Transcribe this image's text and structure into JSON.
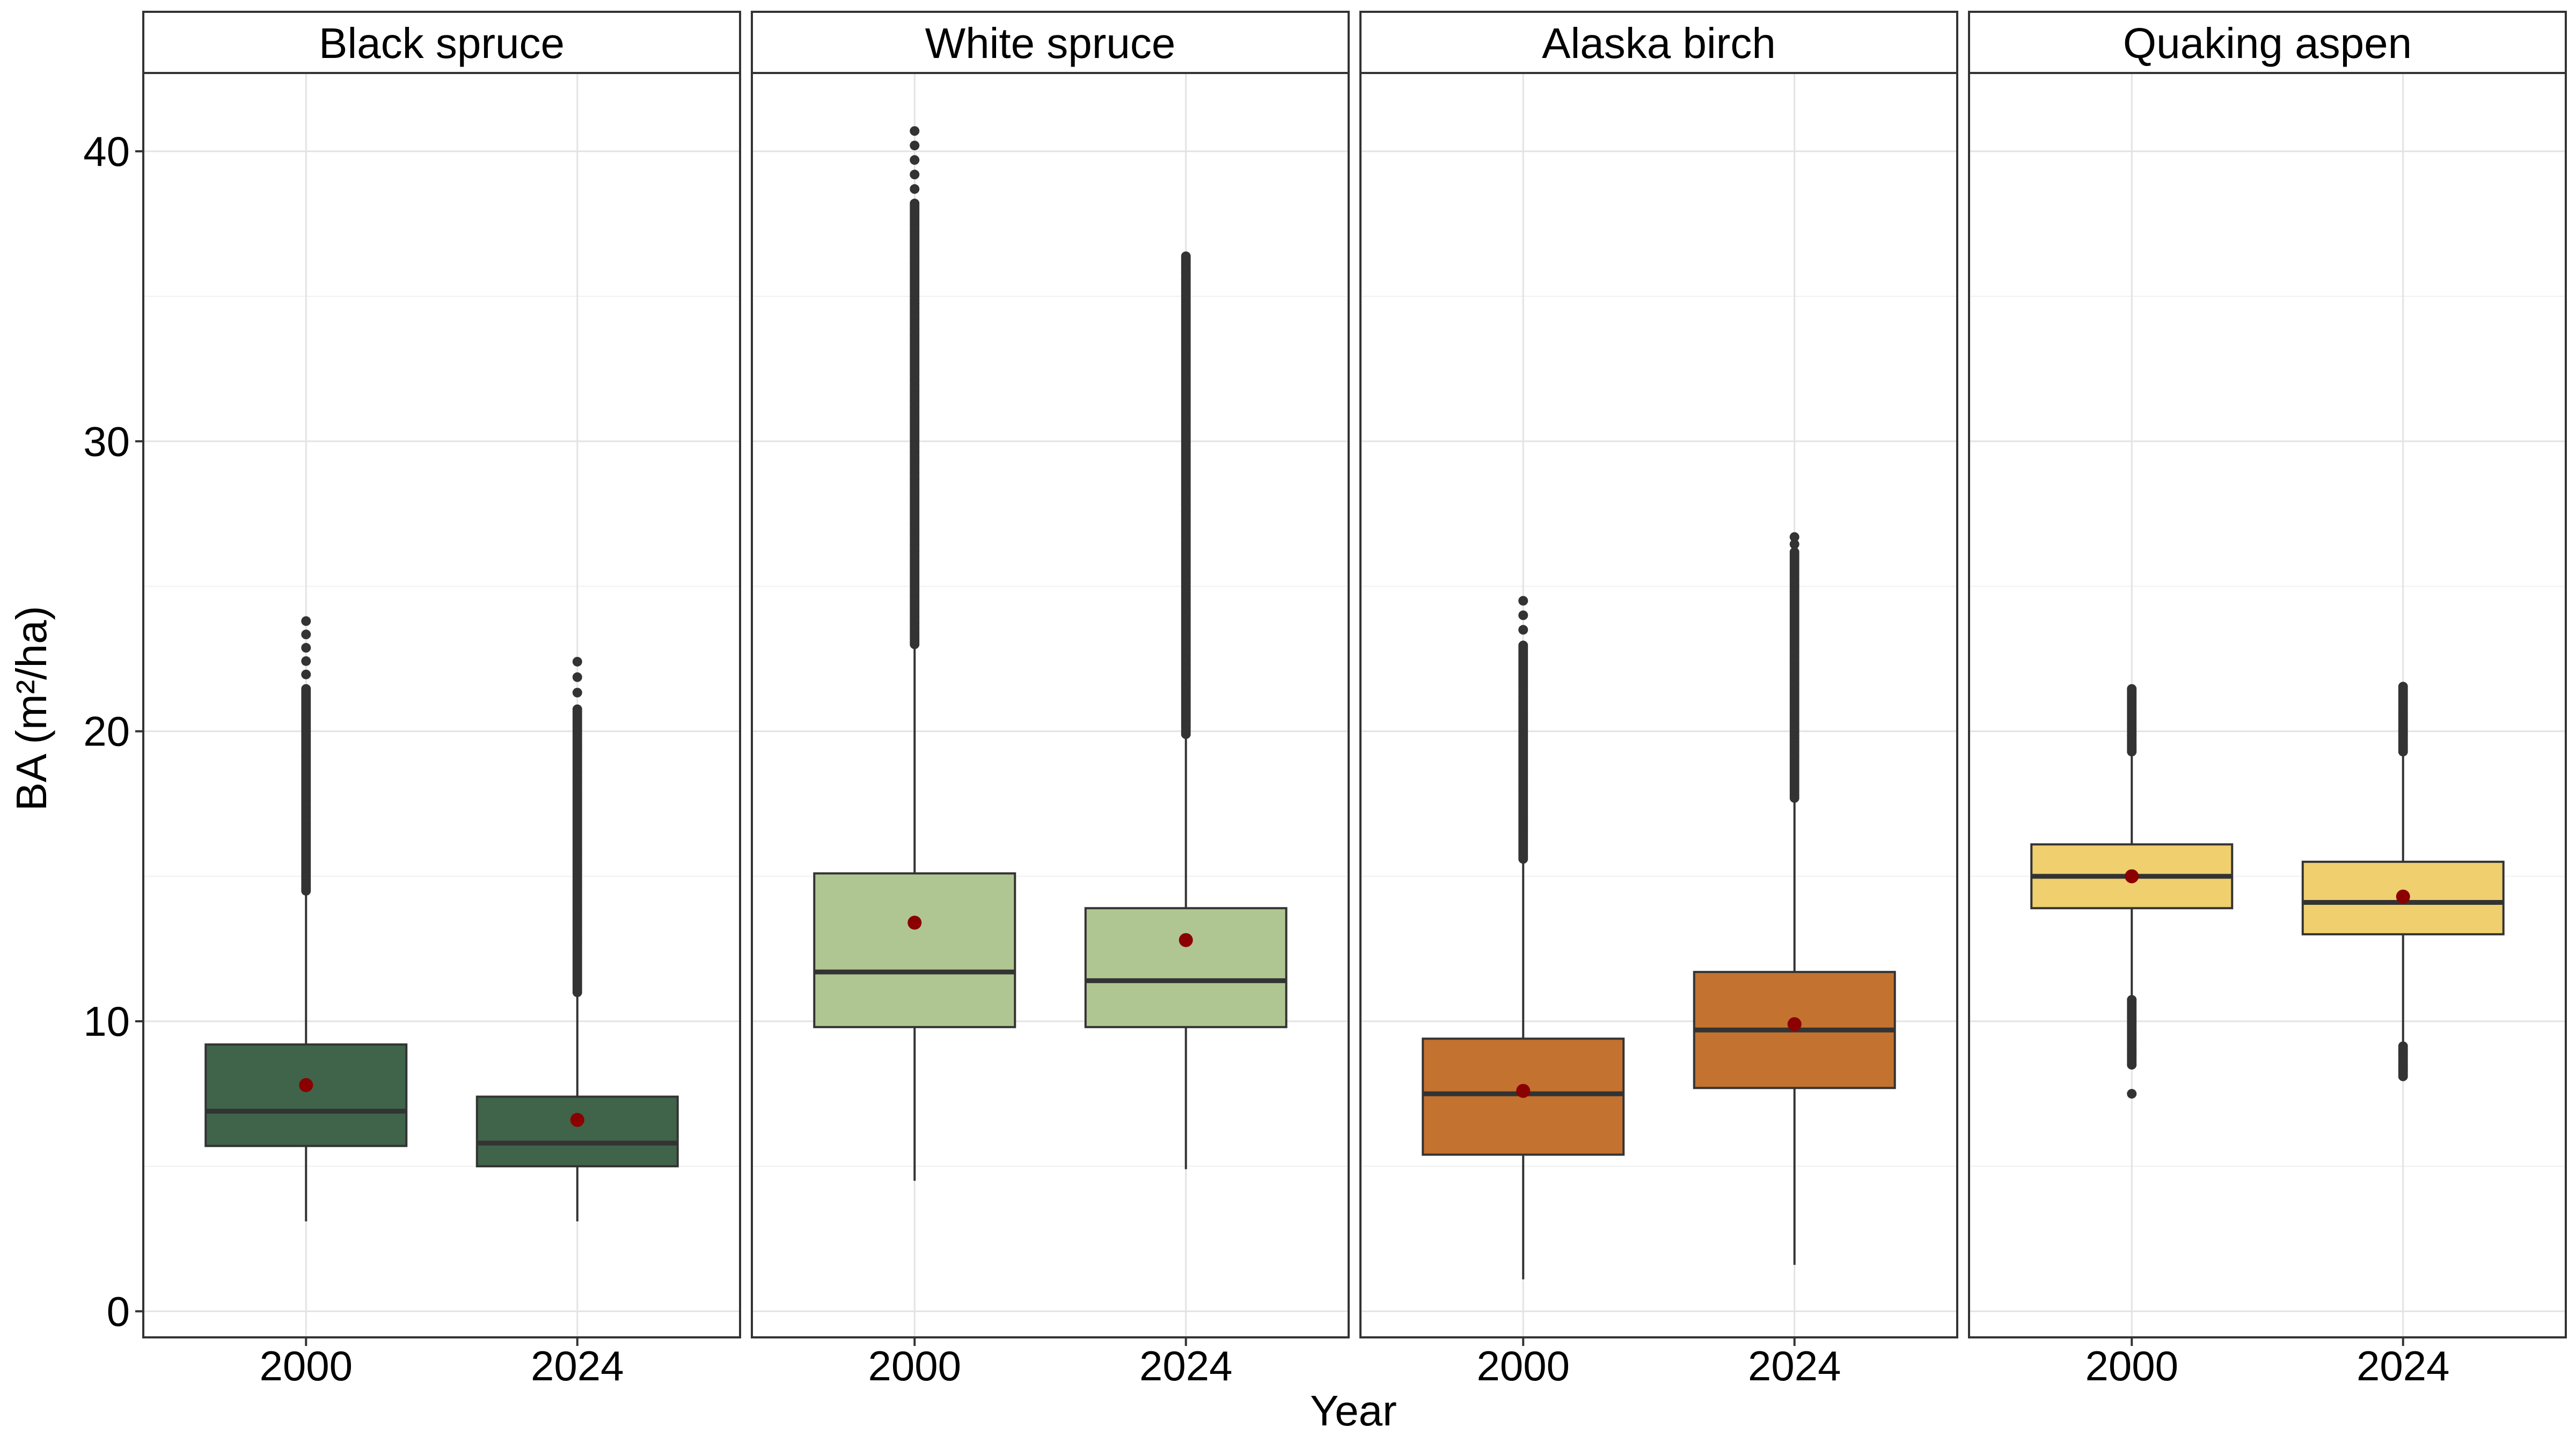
{
  "chart_data": {
    "type": "box",
    "facets": [
      "Black spruce",
      "White spruce",
      "Alaska birch",
      "Quaking aspen"
    ],
    "categories": [
      "2000",
      "2024"
    ],
    "xlabel": "Year",
    "ylabel": "BA (m²/ha)",
    "ylim": [
      -0.9,
      42.7
    ],
    "yticks": [
      0,
      10,
      20,
      30,
      40
    ],
    "grid": true,
    "mean_color": "#8B0000",
    "outlier_color": "#333333",
    "series": [
      {
        "name": "Black spruce",
        "fill": "#3F6449",
        "boxes": [
          {
            "year": "2000",
            "whisker_low": 3.1,
            "q1": 5.7,
            "median": 6.9,
            "q3": 9.2,
            "whisker_high": 14.4,
            "mean": 7.8,
            "outliers": {
              "from": 14.5,
              "to": 23.8,
              "dense_to": 21.5
            }
          },
          {
            "year": "2024",
            "whisker_low": 3.1,
            "q1": 5.0,
            "median": 5.8,
            "q3": 7.4,
            "whisker_high": 10.9,
            "mean": 6.6,
            "outliers": {
              "from": 11.0,
              "to": 22.4,
              "dense_to": 20.8
            }
          }
        ]
      },
      {
        "name": "White spruce",
        "fill": "#B0C692",
        "boxes": [
          {
            "year": "2000",
            "whisker_low": 4.5,
            "q1": 9.8,
            "median": 11.7,
            "q3": 15.1,
            "whisker_high": 22.9,
            "mean": 13.4,
            "outliers": {
              "from": 23.0,
              "to": 40.7,
              "dense_to": 38.2
            }
          },
          {
            "year": "2024",
            "whisker_low": 4.9,
            "q1": 9.8,
            "median": 11.4,
            "q3": 13.9,
            "whisker_high": 19.8,
            "mean": 12.8,
            "outliers": {
              "from": 19.9,
              "to": 36.4,
              "dense_to": 36.4
            }
          }
        ]
      },
      {
        "name": "Alaska birch",
        "fill": "#C3722F",
        "boxes": [
          {
            "year": "2000",
            "whisker_low": 1.1,
            "q1": 5.4,
            "median": 7.5,
            "q3": 9.4,
            "whisker_high": 15.5,
            "mean": 7.6,
            "outliers": {
              "from": 15.6,
              "to": 24.5,
              "dense_to": 23.0
            }
          },
          {
            "year": "2024",
            "whisker_low": 1.6,
            "q1": 7.7,
            "median": 9.7,
            "q3": 11.7,
            "whisker_high": 17.6,
            "mean": 9.9,
            "outliers": {
              "from": 17.7,
              "to": 26.7,
              "dense_to": 26.2
            }
          }
        ]
      },
      {
        "name": "Quaking aspen",
        "fill": "#EFCF6E",
        "boxes": [
          {
            "year": "2000",
            "whisker_low": 10.9,
            "q1": 13.9,
            "median": 15.0,
            "q3": 16.1,
            "whisker_high": 19.2,
            "mean": 15.0,
            "outliers_high": {
              "from": 19.3,
              "to": 21.5,
              "dense_to": 21.5
            },
            "outliers_low": {
              "from": 8.5,
              "to": 10.8,
              "extra": 7.5
            }
          },
          {
            "year": "2024",
            "whisker_low": 9.3,
            "q1": 13.0,
            "median": 14.1,
            "q3": 15.5,
            "whisker_high": 19.2,
            "mean": 14.3,
            "outliers_high": {
              "from": 19.3,
              "to": 21.6,
              "dense_to": 21.6
            },
            "outliers_low": {
              "from": 8.1,
              "to": 9.2
            }
          }
        ]
      }
    ]
  }
}
